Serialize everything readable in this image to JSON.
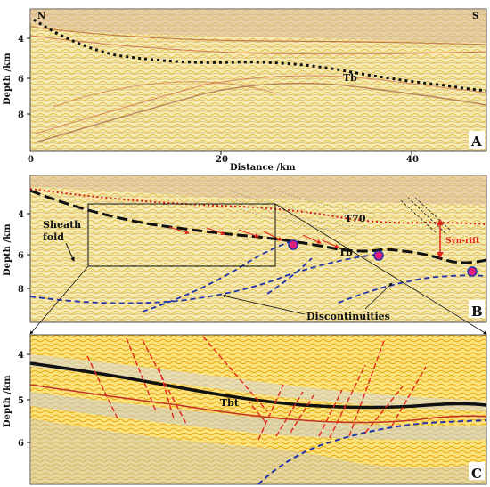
{
  "panelA": {
    "label": "A",
    "compass_left": "N",
    "compass_right": "S",
    "ylabel": "Depth /km",
    "xlabel": "Distance /km",
    "y_ticks": [
      "4",
      "6",
      "8"
    ],
    "x_ticks": [
      "0",
      "20",
      "40"
    ],
    "horizon": "Tb"
  },
  "panelB": {
    "label": "B",
    "ylabel": "Depth /km",
    "y_ticks": [
      "4",
      "6",
      "8"
    ],
    "sheath_fold": "Sheath\nfold",
    "t70": "T70",
    "tb": "Tb",
    "synrift": "Syn-rift",
    "discontinuities": "Discontinuities"
  },
  "panelC": {
    "label": "C",
    "ylabel": "Depth /km",
    "y_ticks": [
      "4",
      "5",
      "6"
    ],
    "tbt": "Tbt"
  },
  "colors": {
    "seismic_base": "#f3e6a0",
    "seismic_yellow": "#f2c21a",
    "seismic_red": "#c0342a",
    "horizon_black": "#111111",
    "discontinuity_blue": "#2233aa",
    "fault_red": "#e0261d",
    "marker_magenta": "#e0207a"
  }
}
